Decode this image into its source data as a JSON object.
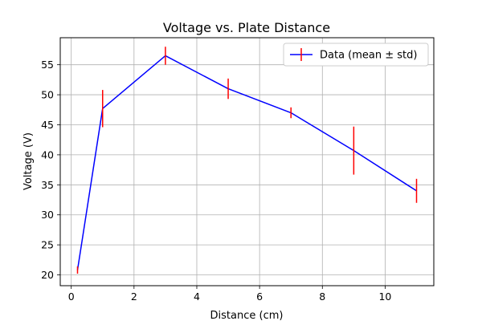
{
  "chart_data": {
    "type": "line",
    "title": "Voltage vs. Plate Distance",
    "xlabel": "Distance (cm)",
    "ylabel": "Voltage (V)",
    "xlim": [
      -0.35,
      11.55
    ],
    "ylim": [
      18.2,
      59.5
    ],
    "x_ticks": [
      0,
      2,
      4,
      6,
      8,
      10
    ],
    "y_ticks": [
      20,
      25,
      30,
      35,
      40,
      45,
      50,
      55
    ],
    "grid": true,
    "legend_position": "top-right",
    "series": [
      {
        "name": "Data (mean ± std)",
        "x": [
          0.2,
          1,
          3,
          5,
          7,
          9,
          11
        ],
        "y": [
          20.8,
          47.7,
          56.5,
          51.0,
          47.0,
          40.7,
          34.0
        ],
        "err": [
          0.6,
          3.1,
          1.5,
          1.7,
          0.9,
          4.0,
          2.0
        ],
        "line_color": "#0000ff",
        "error_color": "#ff0000"
      }
    ]
  }
}
